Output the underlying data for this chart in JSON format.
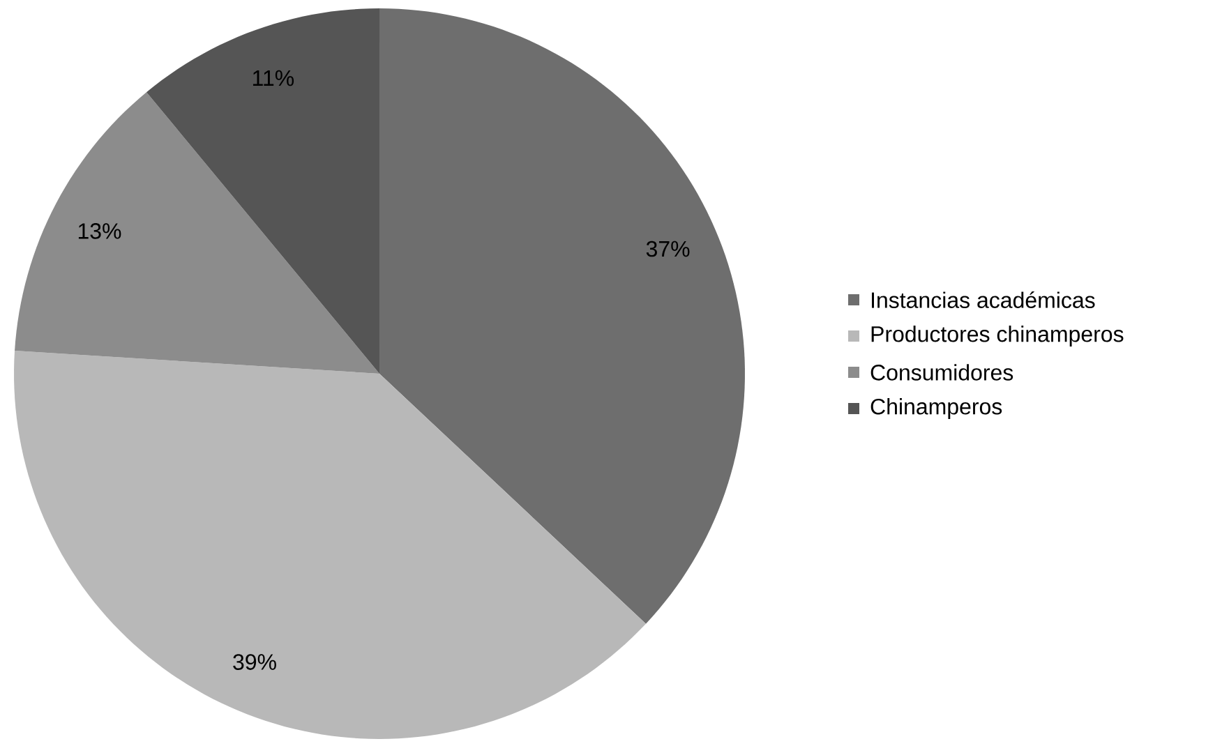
{
  "chart_data": {
    "type": "pie",
    "categories": [
      "Instancias académicas",
      "Productores chinamperos",
      "Consumidores",
      "Chinamperos"
    ],
    "values": [
      37,
      39,
      13,
      11
    ],
    "colors": [
      "#6e6e6e",
      "#b8b8b8",
      "#8c8c8c",
      "#555555"
    ],
    "value_labels": [
      "37%",
      "39%",
      "13%",
      "11%"
    ],
    "legend": "right"
  }
}
